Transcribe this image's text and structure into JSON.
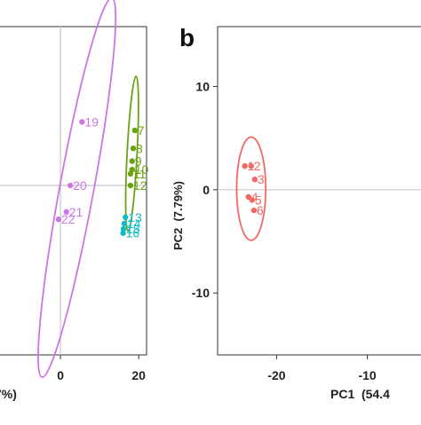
{
  "figure": {
    "panel_label": "b"
  },
  "chart_data": [
    {
      "panel": "left (cropped)",
      "type": "scatter",
      "title": "",
      "xlabel_fragment": "7%)",
      "ylabel": "",
      "xlim": [
        -20,
        22
      ],
      "ylim": [
        -16,
        15
      ],
      "x_ticks": [
        0,
        20
      ],
      "y_ticks": [],
      "grid": false,
      "reference_lines": {
        "x": 0,
        "y": 0
      },
      "legend": "none",
      "series": [
        {
          "color": "#cc77e6",
          "points": [
            {
              "label": "19",
              "x": 5.5,
              "y": 6
            },
            {
              "label": "20",
              "x": 2.5,
              "y": 0
            },
            {
              "label": "21",
              "x": 1.5,
              "y": -2.5
            },
            {
              "label": "22",
              "x": -0.5,
              "y": -3.2
            }
          ],
          "ellipse": {
            "cx": 4.2,
            "cy": -0.2,
            "rx": 20,
            "ry": 2.9,
            "angle_deg": 63.5
          }
        },
        {
          "color": "#6aa312",
          "points": [
            {
              "label": "7",
              "x": 19,
              "y": 5.2
            },
            {
              "label": "8",
              "x": 18.6,
              "y": 3.5
            },
            {
              "label": "9",
              "x": 18.3,
              "y": 2.3
            },
            {
              "label": "10",
              "x": 18.3,
              "y": 1.5
            },
            {
              "label": "11",
              "x": 17.9,
              "y": 1.1
            },
            {
              "label": "12",
              "x": 17.9,
              "y": 0
            }
          ],
          "ellipse": {
            "cx": 18.3,
            "cy": 3,
            "rx": 7.4,
            "ry": 1.2,
            "angle_deg": 82
          }
        },
        {
          "color": "#11bcc4",
          "points": [
            {
              "label": "13",
              "x": 16.6,
              "y": -3
            },
            {
              "label": "14",
              "x": 16.3,
              "y": -3.6
            },
            {
              "label": "15",
              "x": 16.1,
              "y": -4.1
            },
            {
              "label": "16",
              "x": 16,
              "y": -4.5
            }
          ],
          "ellipse": null
        }
      ]
    },
    {
      "panel": "b",
      "type": "scatter",
      "title": "",
      "xlabel_fragment": "PC1  (54.4",
      "ylabel": "PC2  (7.79%)",
      "xlim": [
        -26.5,
        -3.5
      ],
      "ylim": [
        -16,
        15.8
      ],
      "x_ticks": [
        -20,
        -10
      ],
      "y_ticks": [
        10,
        0,
        -10
      ],
      "grid": false,
      "reference_lines": {
        "x": -3.3,
        "y": 0
      },
      "legend": "none",
      "series": [
        {
          "color": "#f06a64",
          "points": [
            {
              "label": "1",
              "x": -23.5,
              "y": 2.3
            },
            {
              "label": "2",
              "x": -22.8,
              "y": 2.3
            },
            {
              "label": "3",
              "x": -22.4,
              "y": 1
            },
            {
              "label": "4",
              "x": -23.1,
              "y": -0.7
            },
            {
              "label": "5",
              "x": -22.7,
              "y": -1
            },
            {
              "label": "6",
              "x": -22.5,
              "y": -2
            }
          ],
          "ellipse": {
            "cx": -22.8,
            "cy": 0.1,
            "rx": 5,
            "ry": 1.6,
            "angle_deg": 90
          }
        }
      ]
    }
  ]
}
